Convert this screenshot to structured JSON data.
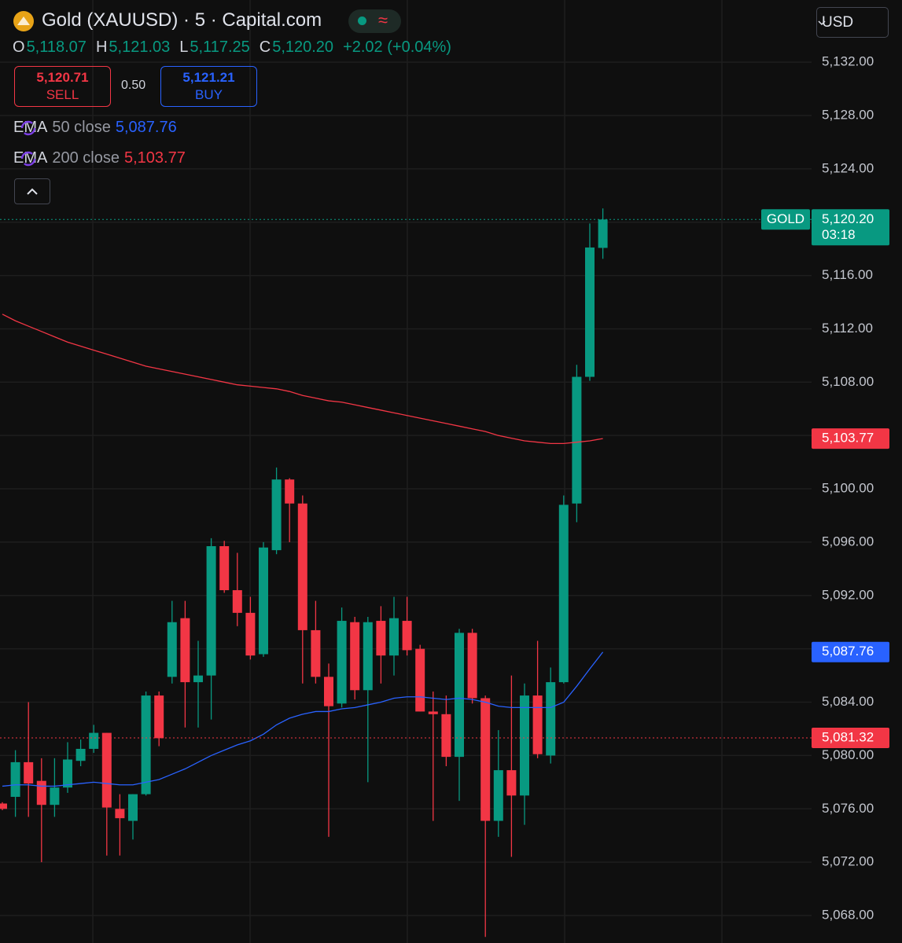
{
  "header": {
    "title": "Gold (XAUUSD) · 5 · Capital.com",
    "currency": "USD",
    "ohlc": [
      {
        "key": "O",
        "value": "5,118.07"
      },
      {
        "key": "H",
        "value": "5,121.03"
      },
      {
        "key": "L",
        "value": "5,117.25"
      },
      {
        "key": "C",
        "value": "5,120.20"
      }
    ],
    "change": "+2.02 (+0.04%)",
    "sell": {
      "price": "5,120.71",
      "label": "SELL"
    },
    "spread": "0.50",
    "buy": {
      "price": "5,121.21",
      "label": "BUY"
    },
    "indicators": [
      {
        "name": "EMA",
        "params": "50 close",
        "value": "5,087.76",
        "color": "#2962ff"
      },
      {
        "name": "EMA",
        "params": "200 close",
        "value": "5,103.77",
        "color": "#f23645"
      }
    ]
  },
  "chart_data": {
    "type": "candlestick",
    "ylim": [
      5065.94,
      5136.66
    ],
    "grid": true,
    "up_color": "#089981",
    "down_color": "#f23645",
    "yticks": [
      {
        "value": 5132,
        "label": "5,132.00"
      },
      {
        "value": 5128,
        "label": "5,128.00"
      },
      {
        "value": 5124,
        "label": "5,124.00"
      },
      {
        "value": 5120,
        "label": "5,120.00"
      },
      {
        "value": 5116,
        "label": "5,116.00"
      },
      {
        "value": 5112,
        "label": "5,112.00"
      },
      {
        "value": 5108,
        "label": "5,108.00"
      },
      {
        "value": 5104,
        "label": "5,104.00"
      },
      {
        "value": 5100,
        "label": "5,100.00"
      },
      {
        "value": 5096,
        "label": "5,096.00"
      },
      {
        "value": 5092,
        "label": "5,092.00"
      },
      {
        "value": 5088,
        "label": "5,088.00"
      },
      {
        "value": 5084,
        "label": "5,084.00"
      },
      {
        "value": 5080,
        "label": "5,080.00"
      },
      {
        "value": 5076,
        "label": "5,076.00"
      },
      {
        "value": 5072,
        "label": "5,072.00"
      },
      {
        "value": 5068,
        "label": "5,068.00"
      }
    ],
    "open": [
      5076.4,
      5076.9,
      5079.5,
      5078.1,
      5076.3,
      5077.6,
      5079.6,
      5080.5,
      5081.7,
      5076.0,
      5075.1,
      5077.1,
      5084.5,
      5085.9,
      5090.3,
      5085.5,
      5086.0,
      5095.7,
      5092.4,
      5090.7,
      5087.6,
      5095.4,
      5100.7,
      5098.9,
      5089.4,
      5085.9,
      5083.9,
      5090.0,
      5084.9,
      5090.1,
      5087.5,
      5090.1,
      5088.0,
      5083.3,
      5083.1,
      5079.9,
      5089.2,
      5084.3,
      5075.1,
      5078.9,
      5077.0,
      5084.5,
      5080.0,
      5085.5,
      5098.9,
      5108.4,
      5118.07
    ],
    "high": [
      5076.5,
      5080.4,
      5084.0,
      5079.8,
      5079.8,
      5081.0,
      5081.2,
      5082.3,
      5081.7,
      5077.1,
      5077.1,
      5084.8,
      5084.8,
      5091.6,
      5091.6,
      5088.6,
      5096.3,
      5096.1,
      5095.2,
      5091.9,
      5096.0,
      5101.6,
      5100.8,
      5099.5,
      5091.6,
      5086.9,
      5091.1,
      5090.4,
      5090.4,
      5091.2,
      5091.9,
      5091.9,
      5088.3,
      5084.8,
      5084.5,
      5089.5,
      5089.5,
      5084.5,
      5081.9,
      5086.0,
      5085.4,
      5088.6,
      5086.6,
      5099.5,
      5109.3,
      5119.9,
      5121.03
    ],
    "low": [
      5075.9,
      5075.4,
      5075.4,
      5072.0,
      5075.4,
      5077.2,
      5079.2,
      5080.2,
      5072.5,
      5072.5,
      5073.7,
      5077.0,
      5080.7,
      5085.4,
      5082.1,
      5082.1,
      5082.7,
      5092.2,
      5089.7,
      5087.2,
      5087.4,
      5095.1,
      5096.0,
      5085.4,
      5085.4,
      5073.9,
      5083.6,
      5084.2,
      5078.0,
      5085.4,
      5086.0,
      5087.5,
      5083.3,
      5075.1,
      5079.2,
      5076.6,
      5083.9,
      5066.4,
      5073.9,
      5072.4,
      5074.8,
      5079.8,
      5079.4,
      5085.4,
      5097.5,
      5108.1,
      5117.25
    ],
    "close": [
      5076.0,
      5079.5,
      5077.9,
      5076.3,
      5077.6,
      5079.7,
      5080.5,
      5081.7,
      5076.1,
      5075.3,
      5077.1,
      5084.5,
      5081.3,
      5090.0,
      5085.5,
      5086.0,
      5095.7,
      5092.4,
      5090.7,
      5087.5,
      5095.6,
      5100.7,
      5098.9,
      5089.4,
      5085.9,
      5083.7,
      5090.1,
      5084.9,
      5090.0,
      5087.5,
      5090.3,
      5087.9,
      5083.3,
      5083.1,
      5079.9,
      5089.2,
      5084.3,
      5075.1,
      5078.9,
      5077.0,
      5084.5,
      5080.1,
      5085.5,
      5098.8,
      5108.4,
      5118.1,
      5120.2
    ],
    "lines": [
      {
        "color": "#2962ff",
        "width": 1.3,
        "values": [
          5077.7,
          5077.8,
          5077.8,
          5077.7,
          5077.7,
          5077.8,
          5077.9,
          5078.0,
          5077.9,
          5077.8,
          5077.8,
          5078.0,
          5078.2,
          5078.6,
          5079.0,
          5079.5,
          5080.0,
          5080.4,
          5080.8,
          5081.1,
          5081.6,
          5082.3,
          5082.8,
          5083.1,
          5083.3,
          5083.3,
          5083.5,
          5083.6,
          5083.8,
          5084.0,
          5084.3,
          5084.4,
          5084.4,
          5084.3,
          5084.2,
          5084.3,
          5084.2,
          5084.0,
          5083.7,
          5083.6,
          5083.6,
          5083.6,
          5083.6,
          5084.0,
          5085.2,
          5086.5,
          5087.76
        ]
      },
      {
        "color": "#f23645",
        "width": 1.3,
        "values": [
          5113.1,
          5112.6,
          5112.2,
          5111.8,
          5111.4,
          5111.0,
          5110.7,
          5110.4,
          5110.1,
          5109.8,
          5109.5,
          5109.2,
          5109.0,
          5108.8,
          5108.6,
          5108.4,
          5108.2,
          5108.0,
          5107.8,
          5107.7,
          5107.6,
          5107.5,
          5107.3,
          5107.0,
          5106.8,
          5106.6,
          5106.5,
          5106.3,
          5106.1,
          5105.9,
          5105.7,
          5105.5,
          5105.3,
          5105.1,
          5104.9,
          5104.7,
          5104.5,
          5104.3,
          5104.0,
          5103.8,
          5103.6,
          5103.5,
          5103.4,
          5103.4,
          5103.5,
          5103.6,
          5103.77
        ]
      }
    ],
    "price_labels": [
      {
        "value": 5120.2,
        "label": "5,120.20",
        "tag": "GOLD",
        "countdown": "03:18",
        "color": "#089981",
        "line": true
      },
      {
        "value": 5103.77,
        "label": "5,103.77",
        "color": "#f23645",
        "line": false
      },
      {
        "value": 5087.76,
        "label": "5,087.76",
        "color": "#2962ff",
        "line": false
      },
      {
        "value": 5081.32,
        "label": "5,081.32",
        "color": "#f23645",
        "line": true
      }
    ]
  }
}
